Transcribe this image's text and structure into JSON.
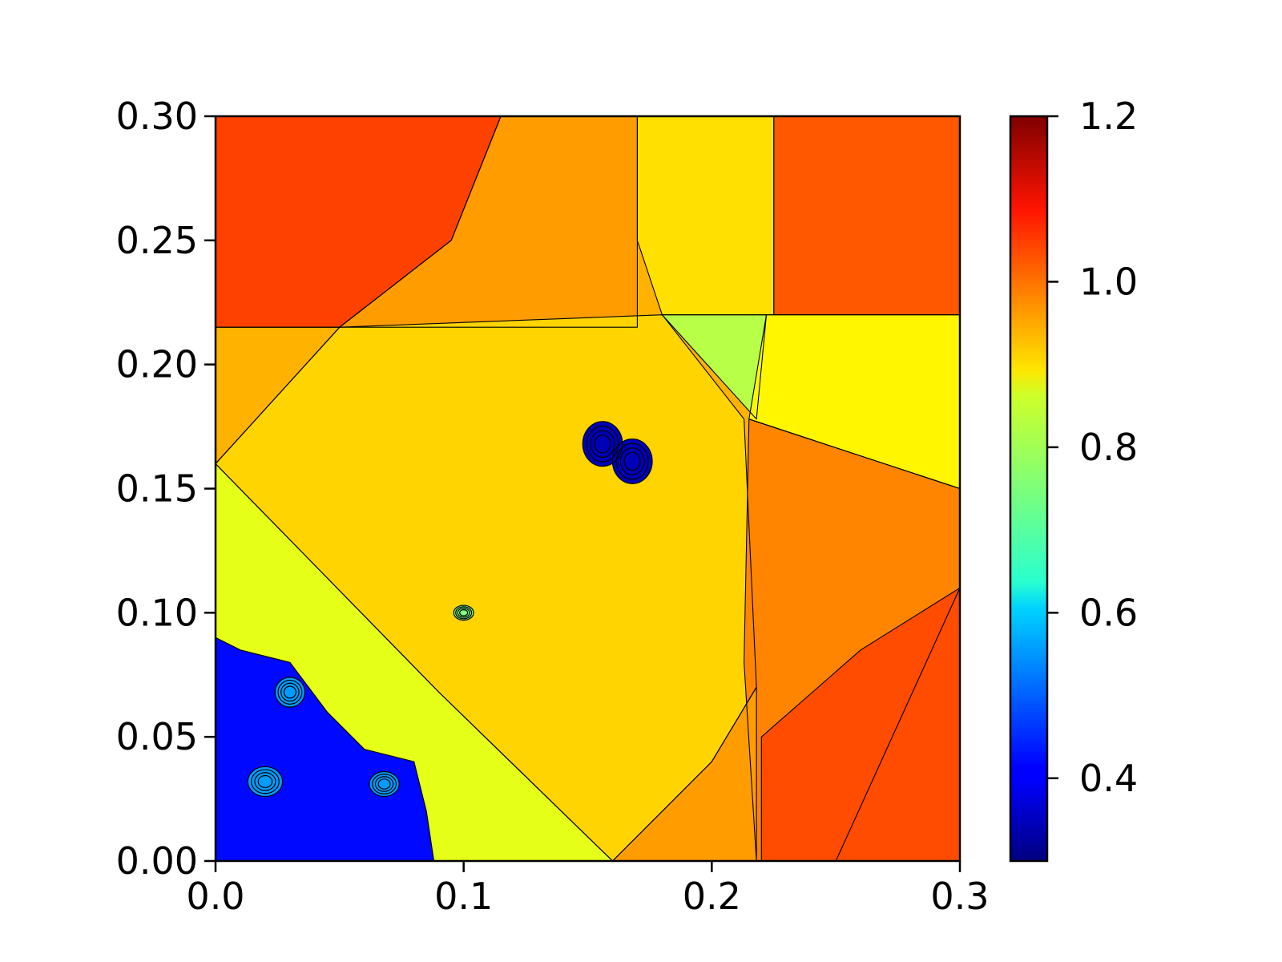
{
  "chart_data": {
    "type": "heatmap",
    "title": "",
    "xlabel": "",
    "ylabel": "",
    "xlim": [
      0.0,
      0.3
    ],
    "ylim": [
      0.0,
      0.3
    ],
    "x_ticks": [
      0.0,
      0.1,
      0.2,
      0.3
    ],
    "x_tick_labels": [
      "0.0",
      "0.1",
      "0.2",
      "0.3"
    ],
    "y_ticks": [
      0.0,
      0.05,
      0.1,
      0.15,
      0.2,
      0.25,
      0.3
    ],
    "y_tick_labels": [
      "0.00",
      "0.05",
      "0.10",
      "0.15",
      "0.20",
      "0.25",
      "0.30"
    ],
    "grid": false,
    "colormap": "jet",
    "colorbar": {
      "range": [
        0.3,
        1.2
      ],
      "ticks": [
        0.4,
        0.6,
        0.8,
        1.0,
        1.2
      ],
      "tick_labels": [
        "0.4",
        "0.6",
        "0.8",
        "1.0",
        "1.2"
      ]
    },
    "contour_lines": true,
    "regions": [
      {
        "polygon": [
          [
            0.0,
            0.3
          ],
          [
            0.3,
            0.3
          ],
          [
            0.3,
            0.0
          ],
          [
            0.0,
            0.0
          ]
        ],
        "value": 0.93
      },
      {
        "polygon": [
          [
            0.0,
            0.3
          ],
          [
            0.115,
            0.3
          ],
          [
            0.095,
            0.25
          ],
          [
            0.05,
            0.215
          ],
          [
            0.0,
            0.215
          ]
        ],
        "value": 1.03
      },
      {
        "polygon": [
          [
            0.115,
            0.3
          ],
          [
            0.17,
            0.3
          ],
          [
            0.17,
            0.215
          ],
          [
            0.05,
            0.215
          ],
          [
            0.095,
            0.25
          ]
        ],
        "value": 0.95
      },
      {
        "polygon": [
          [
            0.17,
            0.3
          ],
          [
            0.225,
            0.3
          ],
          [
            0.225,
            0.22
          ],
          [
            0.18,
            0.22
          ],
          [
            0.17,
            0.25
          ]
        ],
        "value": 0.89
      },
      {
        "polygon": [
          [
            0.225,
            0.3
          ],
          [
            0.3,
            0.3
          ],
          [
            0.3,
            0.22
          ],
          [
            0.225,
            0.22
          ]
        ],
        "value": 1.01
      },
      {
        "polygon": [
          [
            0.0,
            0.215
          ],
          [
            0.05,
            0.215
          ],
          [
            0.0,
            0.16
          ]
        ],
        "value": 0.93
      },
      {
        "polygon": [
          [
            0.0,
            0.16
          ],
          [
            0.09,
            0.068
          ],
          [
            0.16,
            0.0
          ],
          [
            0.0,
            0.0
          ]
        ],
        "value": 0.84
      },
      {
        "polygon": [
          [
            0.0,
            0.16
          ],
          [
            0.05,
            0.215
          ],
          [
            0.18,
            0.22
          ],
          [
            0.213,
            0.178
          ],
          [
            0.218,
            0.07
          ],
          [
            0.2,
            0.04
          ],
          [
            0.16,
            0.0
          ],
          [
            0.09,
            0.068
          ]
        ],
        "value": 0.9
      },
      {
        "polygon": [
          [
            0.18,
            0.22
          ],
          [
            0.222,
            0.22
          ],
          [
            0.218,
            0.178
          ]
        ],
        "value": 0.8
      },
      {
        "polygon": [
          [
            0.222,
            0.22
          ],
          [
            0.3,
            0.22
          ],
          [
            0.3,
            0.15
          ],
          [
            0.215,
            0.178
          ]
        ],
        "value": 0.87
      },
      {
        "polygon": [
          [
            0.215,
            0.178
          ],
          [
            0.3,
            0.15
          ],
          [
            0.3,
            0.11
          ],
          [
            0.25,
            0.0
          ],
          [
            0.218,
            0.0
          ],
          [
            0.213,
            0.08
          ]
        ],
        "value": 0.97
      },
      {
        "polygon": [
          [
            0.3,
            0.11
          ],
          [
            0.3,
            0.0
          ],
          [
            0.22,
            0.0
          ],
          [
            0.22,
            0.05
          ],
          [
            0.26,
            0.085
          ]
        ],
        "value": 1.02
      },
      {
        "polygon": [
          [
            0.16,
            0.0
          ],
          [
            0.2,
            0.04
          ],
          [
            0.218,
            0.07
          ],
          [
            0.218,
            0.0
          ]
        ],
        "value": 0.95
      },
      {
        "polygon": [
          [
            0.0,
            0.09
          ],
          [
            0.01,
            0.085
          ],
          [
            0.03,
            0.08
          ],
          [
            0.045,
            0.06
          ],
          [
            0.06,
            0.045
          ],
          [
            0.08,
            0.04
          ],
          [
            0.085,
            0.02
          ],
          [
            0.088,
            0.0
          ],
          [
            0.0,
            0.0
          ]
        ],
        "value": 0.42
      },
      {
        "ellipse": {
          "cx": 0.156,
          "cy": 0.168,
          "rx": 0.008,
          "ry": 0.009
        },
        "value": 0.35
      },
      {
        "ellipse": {
          "cx": 0.168,
          "cy": 0.161,
          "rx": 0.008,
          "ry": 0.009
        },
        "value": 0.35
      },
      {
        "ellipse": {
          "cx": 0.1,
          "cy": 0.1,
          "rx": 0.004,
          "ry": 0.003
        },
        "value": 0.75
      },
      {
        "ellipse": {
          "cx": 0.03,
          "cy": 0.068,
          "rx": 0.006,
          "ry": 0.006
        },
        "value": 0.55
      },
      {
        "ellipse": {
          "cx": 0.02,
          "cy": 0.032,
          "rx": 0.007,
          "ry": 0.006
        },
        "value": 0.55
      },
      {
        "ellipse": {
          "cx": 0.068,
          "cy": 0.031,
          "rx": 0.006,
          "ry": 0.005
        },
        "value": 0.55
      }
    ]
  }
}
